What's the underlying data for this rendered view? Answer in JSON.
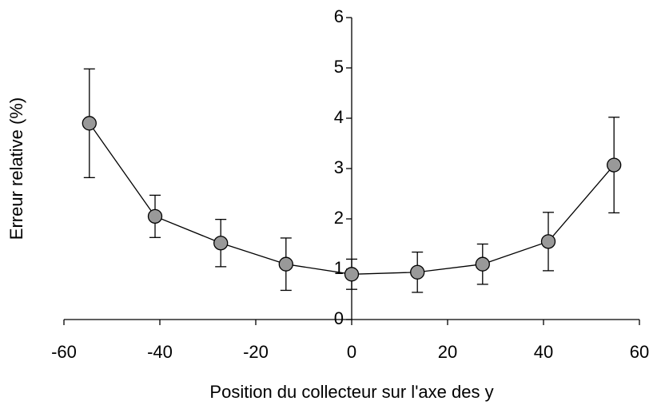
{
  "chart_data": {
    "type": "line",
    "x_label": "Position du collecteur sur l'axe des y",
    "y_label": "Erreur relative (%)",
    "x": [
      -54.7,
      -41,
      -27.3,
      -13.7,
      0,
      13.7,
      27.3,
      41,
      54.7
    ],
    "series": [
      {
        "color": "#999999",
        "values": [
          3.9,
          2.05,
          1.52,
          1.1,
          0.9,
          0.94,
          1.1,
          1.55,
          3.07
        ],
        "errors": [
          1.08,
          0.42,
          0.47,
          0.52,
          0.3,
          0.4,
          0.4,
          0.58,
          0.95
        ]
      }
    ],
    "xlim": [
      -60,
      60
    ],
    "xticks": [
      -60,
      -40,
      -20,
      0,
      20,
      40,
      60
    ],
    "ylim": [
      0,
      6
    ],
    "yticks": [
      0,
      1,
      2,
      3,
      4,
      5,
      6
    ]
  }
}
